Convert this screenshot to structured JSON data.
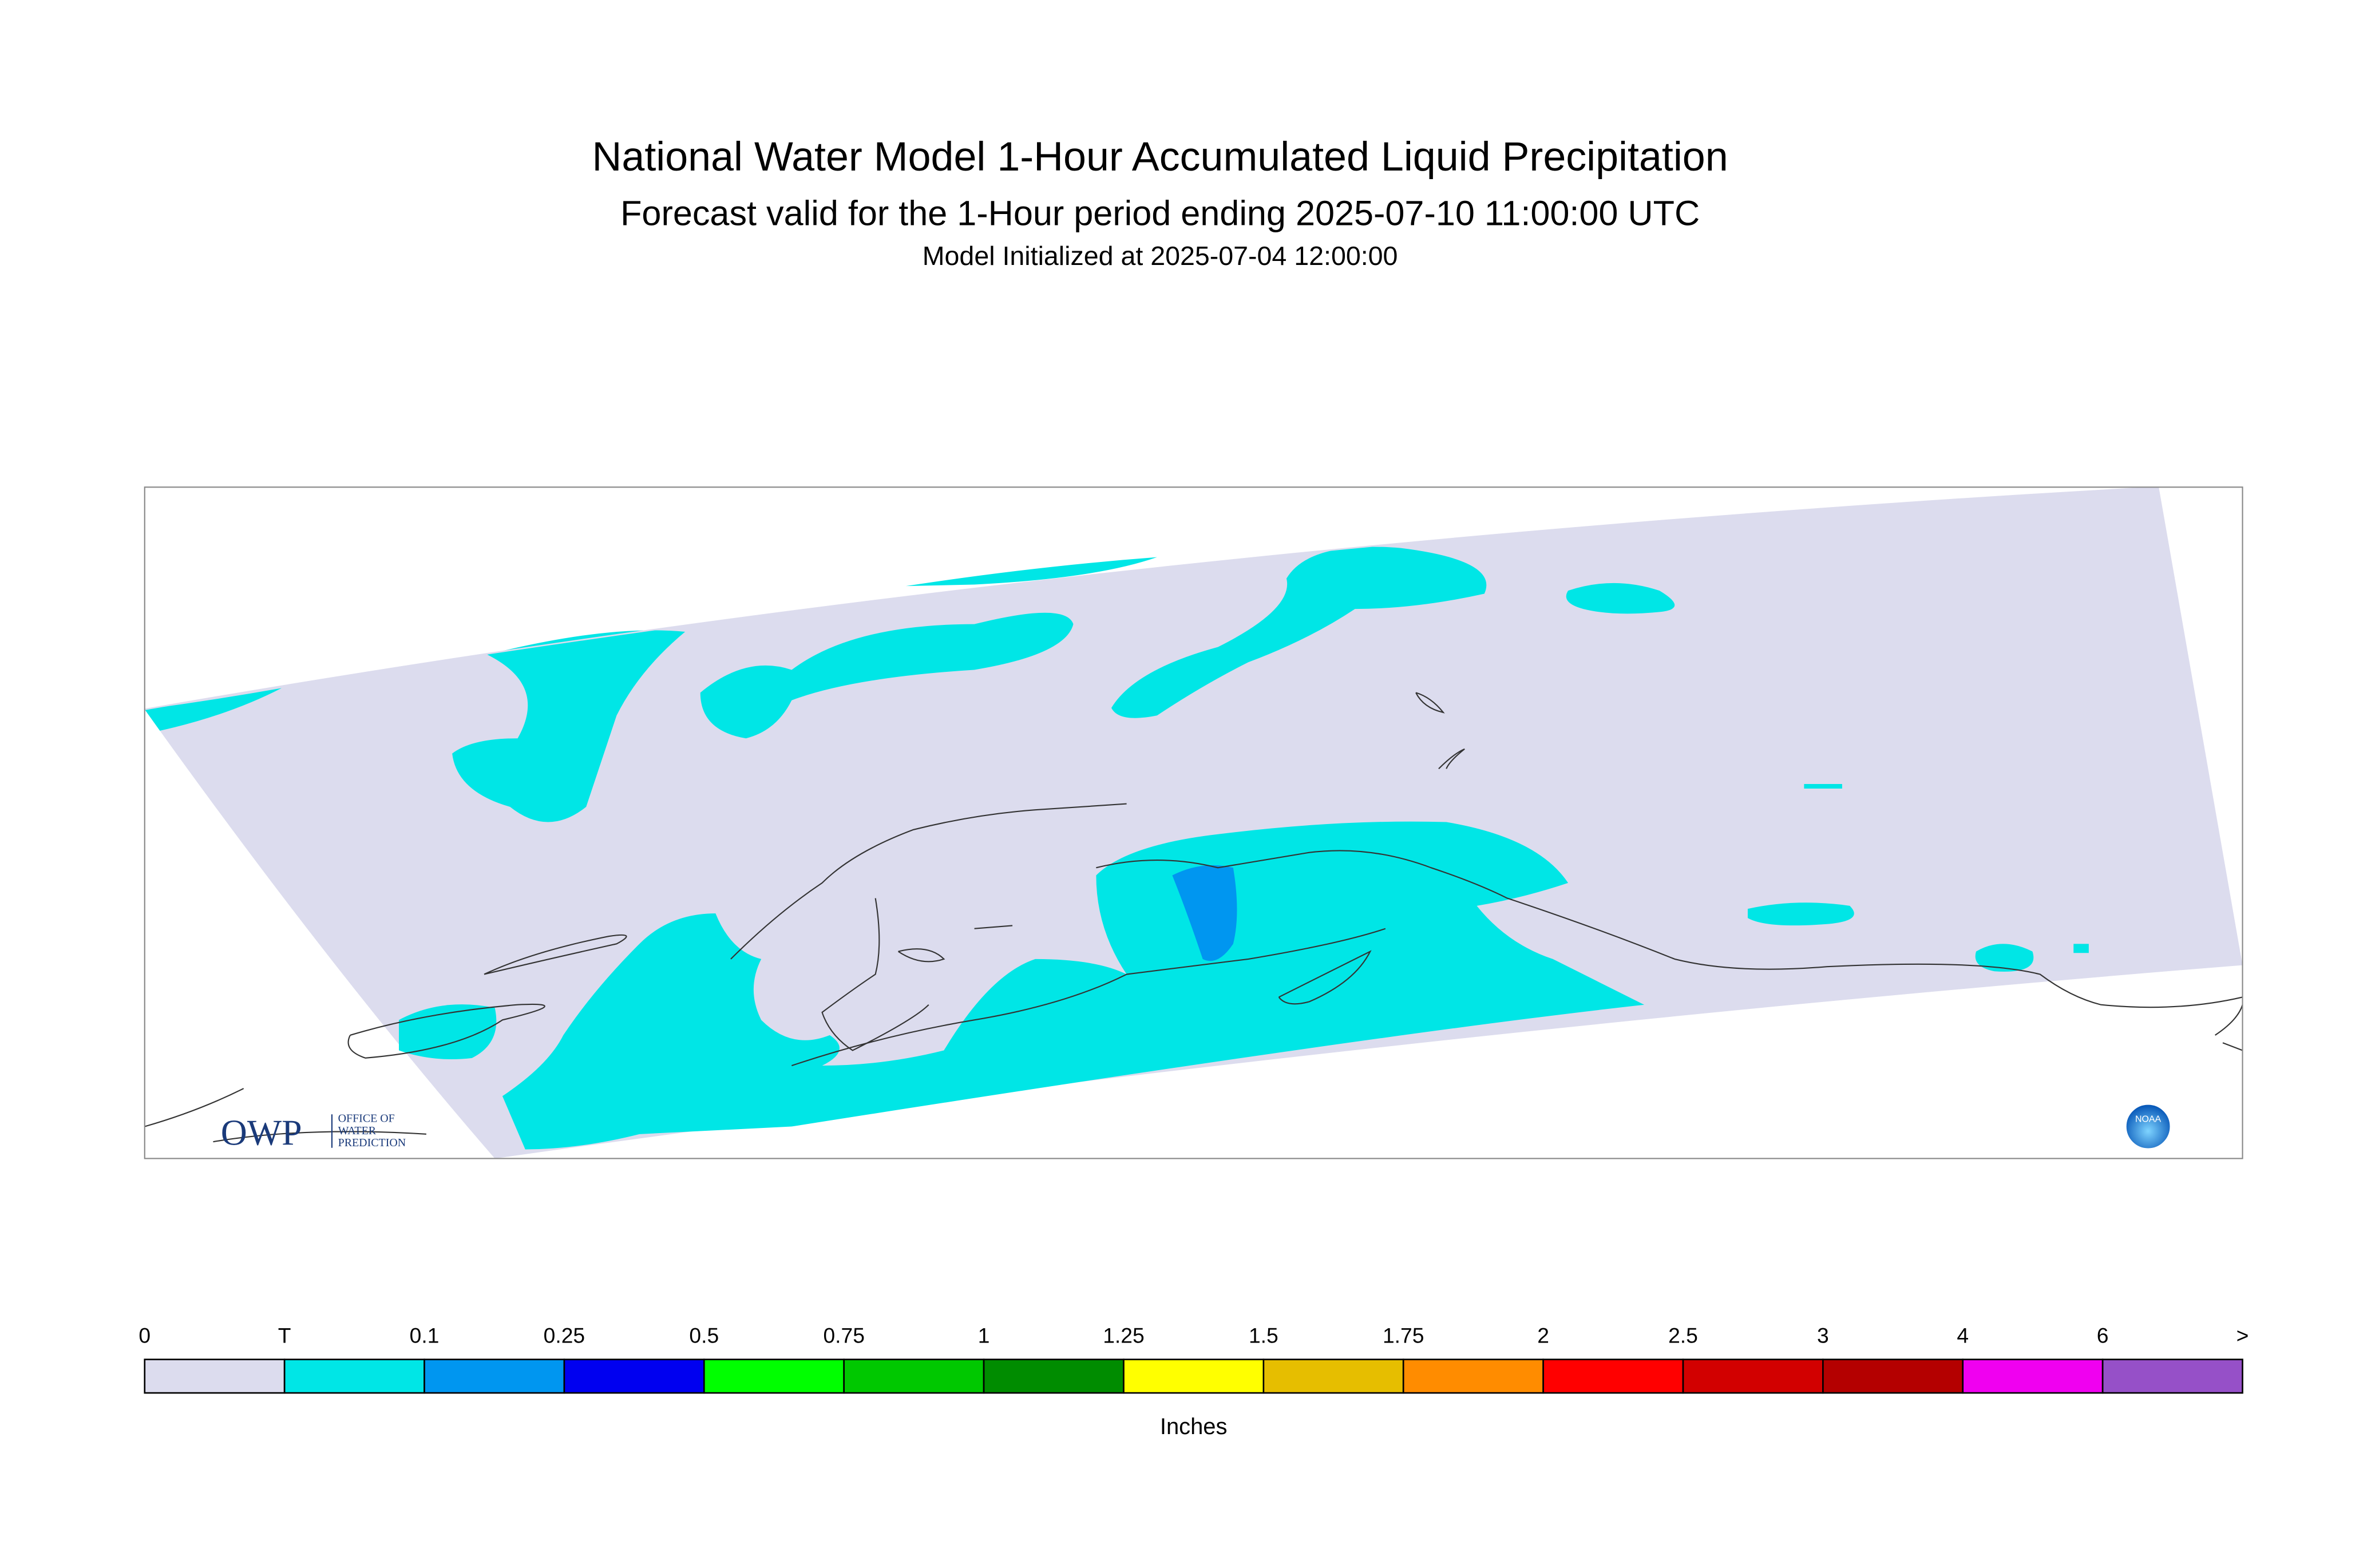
{
  "header": {
    "title": "National Water Model 1-Hour Accumulated Liquid Precipitation",
    "subtitle": "Forecast valid for the 1-Hour period ending 2025-07-10 11:00:00 UTC",
    "init": "Model Initialized at 2025-07-04 12:00:00"
  },
  "logo": {
    "owp": "OWP",
    "office": [
      "OFFICE OF",
      "WATER",
      "PREDICTION"
    ],
    "noaa": "NOAA"
  },
  "legend": {
    "labels": [
      "0",
      "T",
      "0.1",
      "0.25",
      "0.5",
      "0.75",
      "1",
      "1.25",
      "1.5",
      "1.75",
      "2",
      "2.5",
      "3",
      "4",
      "6",
      ">"
    ],
    "colors": [
      "#dcdcee",
      "#00e6e6",
      "#0096f0",
      "#0000f0",
      "#00ff00",
      "#00c800",
      "#008c00",
      "#ffff00",
      "#e6be00",
      "#ff8c00",
      "#ff0000",
      "#d20000",
      "#b40000",
      "#f000f0",
      "#9650c8"
    ],
    "unit": "Inches"
  }
}
